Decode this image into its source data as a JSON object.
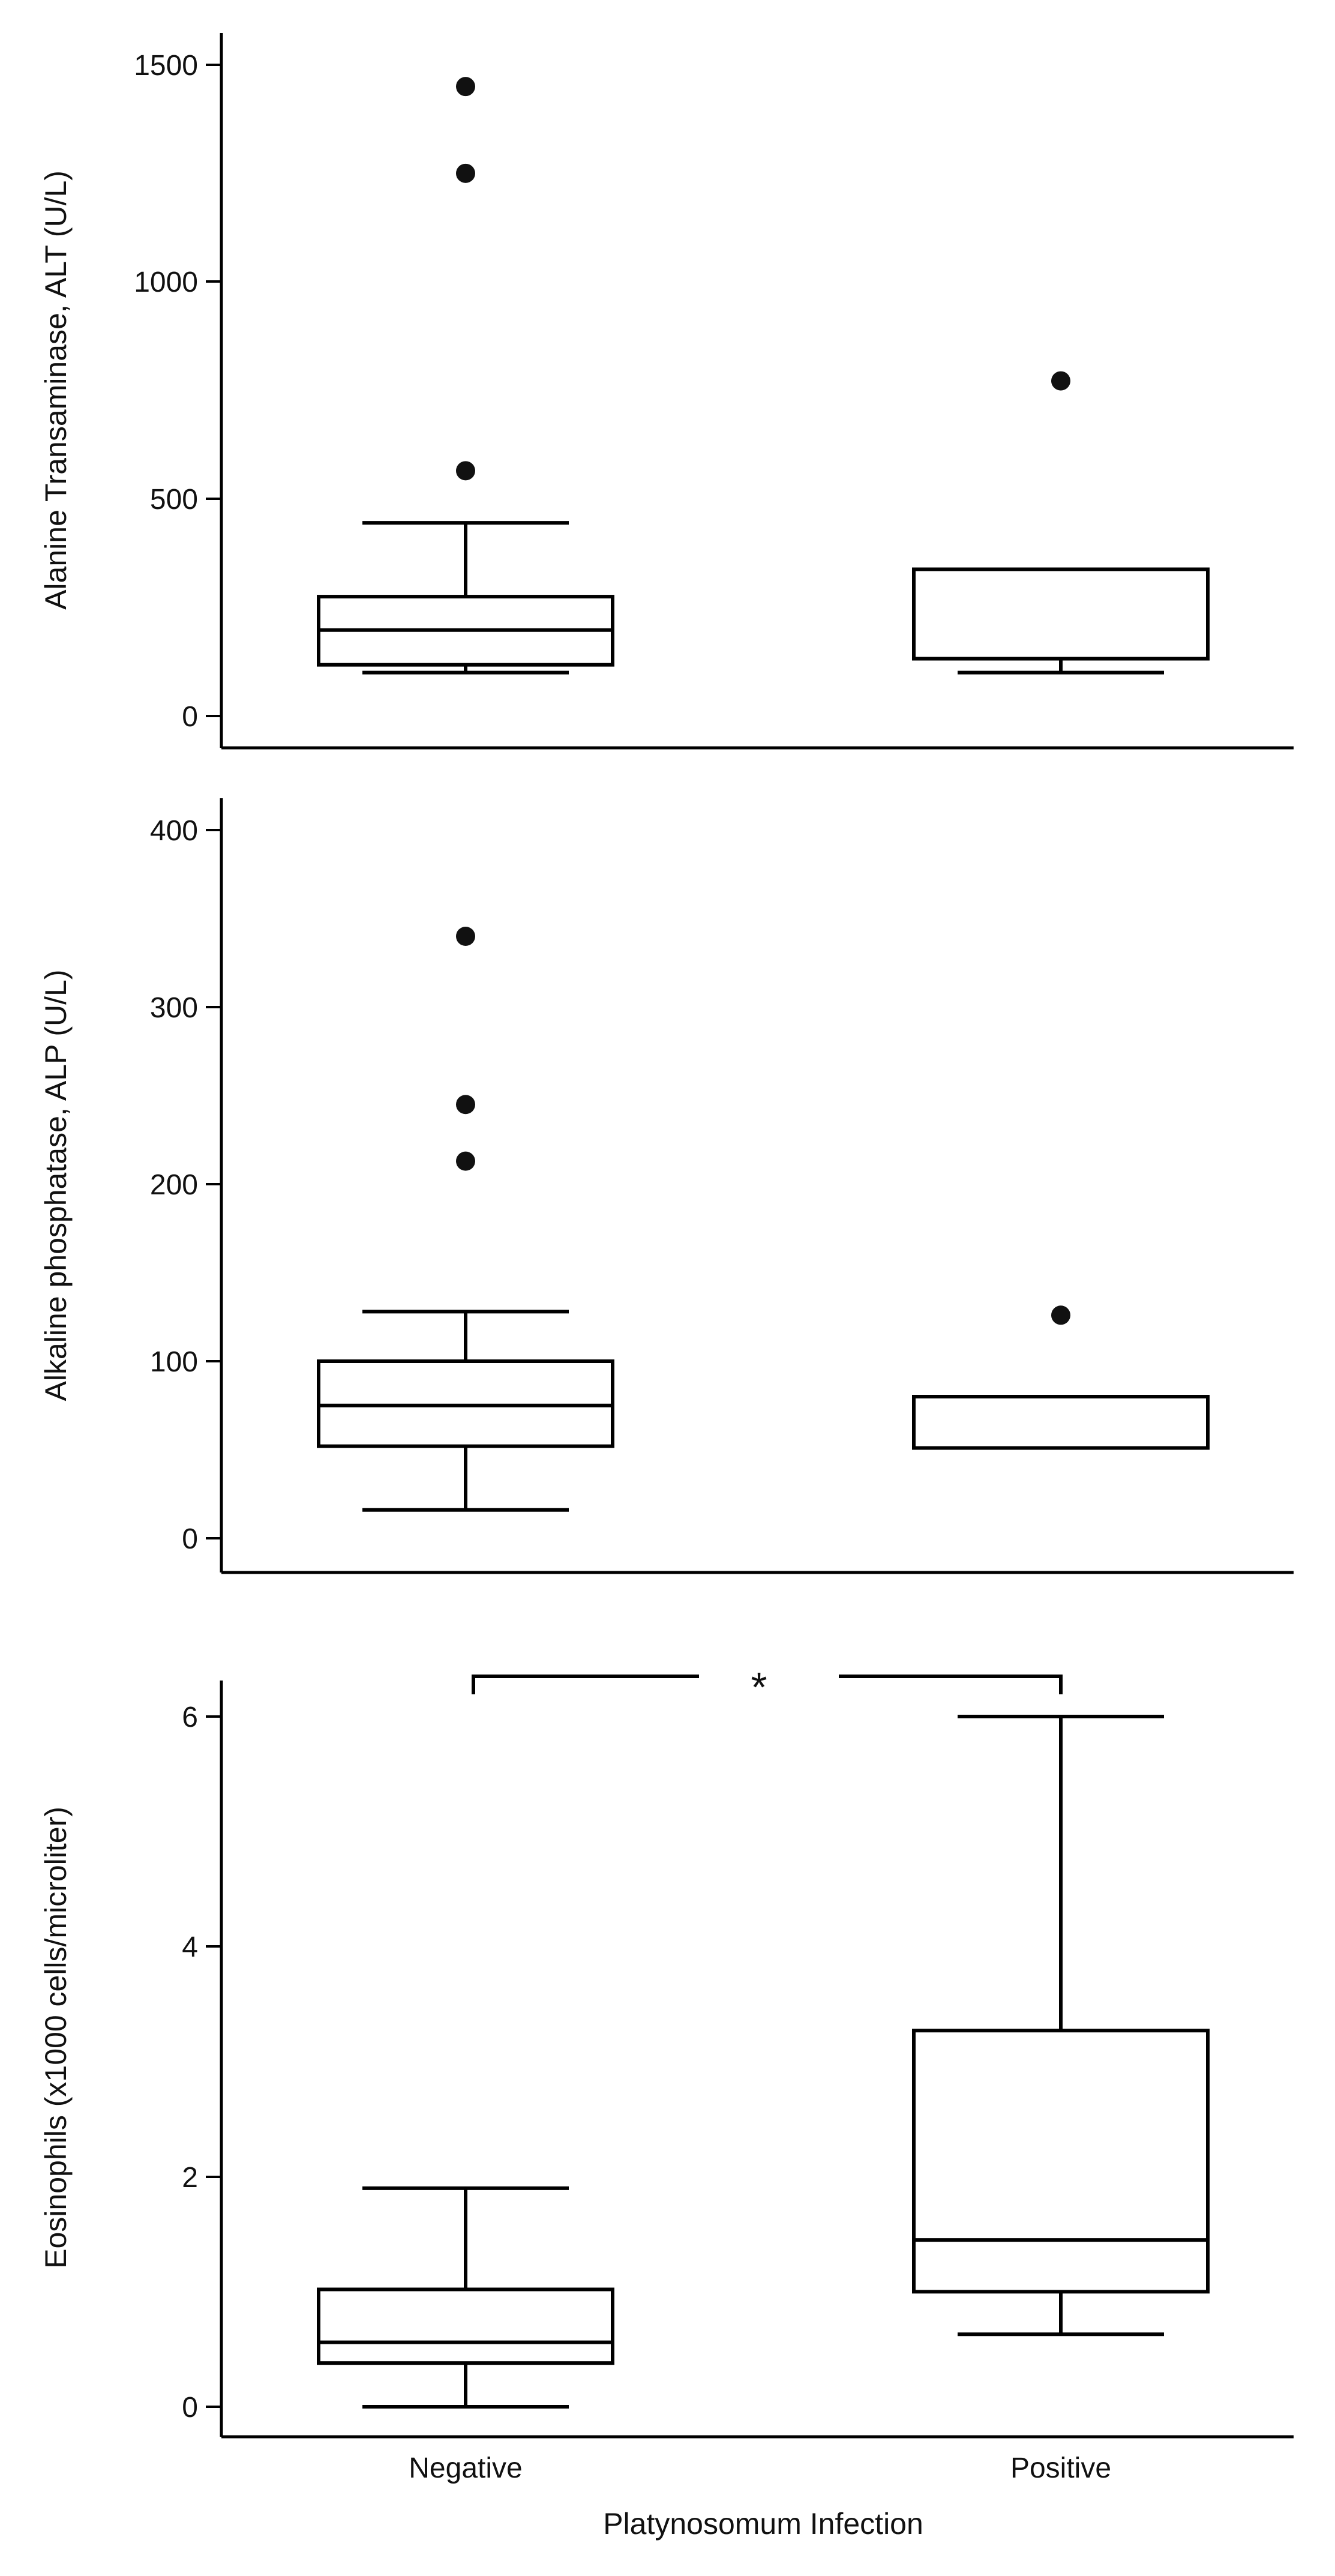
{
  "chart_data": [
    {
      "type": "boxplot",
      "ylabel": "Alanine Transaminase, ALT (U/L)",
      "xlabel": "",
      "ylim": [
        -70,
        1580
      ],
      "yticks": [
        "0",
        "500",
        "1000",
        "1500"
      ],
      "categories": [
        "Negative",
        "Positive"
      ],
      "series": [
        {
          "name": "Negative",
          "min": 100,
          "q1": 118,
          "median": 198,
          "q3": 275,
          "max": 445,
          "outliers": [
            565,
            1250,
            1450
          ]
        },
        {
          "name": "Positive",
          "min": 100,
          "q1": 132,
          "median": 132,
          "q3": 338,
          "max": 338,
          "outliers": [
            772
          ]
        }
      ]
    },
    {
      "type": "boxplot",
      "ylabel": "Alkaline phosphatase, ALP (U/L)",
      "xlabel": "",
      "ylim": [
        -20,
        418
      ],
      "yticks": [
        "0",
        "100",
        "200",
        "300",
        "400"
      ],
      "categories": [
        "Negative",
        "Positive"
      ],
      "series": [
        {
          "name": "Negative",
          "min": 16,
          "q1": 52,
          "median": 75,
          "q3": 100,
          "max": 128,
          "outliers": [
            213,
            245,
            340
          ]
        },
        {
          "name": "Positive",
          "min": 51,
          "q1": 51,
          "median": 80,
          "q3": 80,
          "max": 80,
          "outliers": [
            126
          ]
        }
      ]
    },
    {
      "type": "boxplot",
      "ylabel": "Eosinophils (x1000 cells/microliter)",
      "xlabel": "Platynosomum Infection",
      "ylim": [
        -0.28,
        6.3
      ],
      "yticks": [
        "0",
        "2",
        "4",
        "6"
      ],
      "categories": [
        "Negative",
        "Positive"
      ],
      "series": [
        {
          "name": "Negative",
          "min": 0.0,
          "q1": 0.38,
          "median": 0.56,
          "q3": 1.02,
          "max": 1.9,
          "outliers": []
        },
        {
          "name": "Positive",
          "min": 0.63,
          "q1": 1.0,
          "median": 1.45,
          "q3": 3.27,
          "max": 6.0,
          "outliers": []
        }
      ],
      "annotation": {
        "text": "*",
        "between": [
          "Negative",
          "Positive"
        ],
        "y": 6.34
      }
    }
  ]
}
